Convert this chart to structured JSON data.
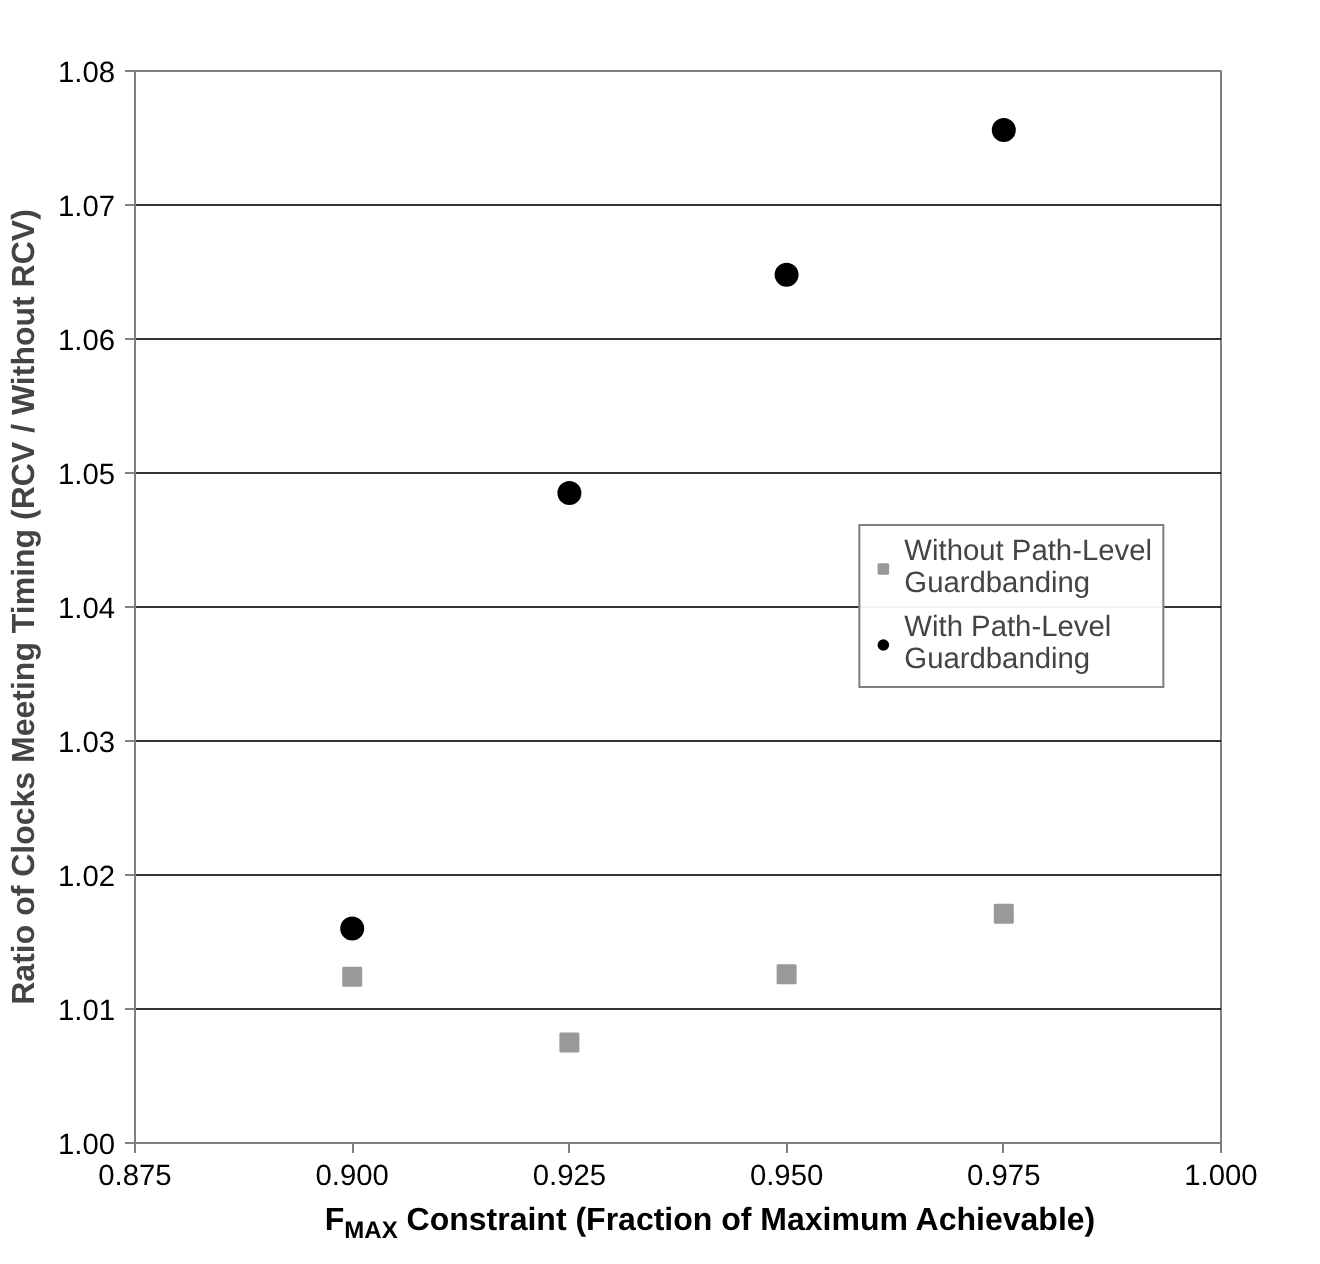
{
  "chart_data": {
    "type": "scatter",
    "xlabel": "F$_{MAX}$ Constraint (Fraction of Maximum Achievable)",
    "ylabel": "Ratio of Clocks Meeting Timing (RCV / Without RCV)",
    "x": [
      0.9,
      0.925,
      0.95,
      0.975
    ],
    "series": [
      {
        "name": "Without Path-Level Guardbanding",
        "color": "#999999",
        "marker": "square",
        "values": [
          1.0124,
          1.0075,
          1.0126,
          1.0171
        ]
      },
      {
        "name": "With Path-Level Guardbanding",
        "color": "#000000",
        "marker": "circle",
        "values": [
          1.016,
          1.0485,
          1.0648,
          1.0756
        ]
      }
    ],
    "xlim": [
      0.875,
      1.0
    ],
    "xticks": [
      {
        "value": 0.875,
        "label": "0.875"
      },
      {
        "value": 0.9,
        "label": "0.900"
      },
      {
        "value": 0.925,
        "label": "0.925"
      },
      {
        "value": 0.95,
        "label": "0.950"
      },
      {
        "value": 0.975,
        "label": "0.975"
      },
      {
        "value": 1.0,
        "label": "1.000"
      }
    ],
    "ylim": [
      1.0,
      1.08
    ],
    "yticks": [
      {
        "value": 1.0,
        "label": "1.00"
      },
      {
        "value": 1.01,
        "label": "1.01"
      },
      {
        "value": 1.02,
        "label": "1.02"
      },
      {
        "value": 1.03,
        "label": "1.03"
      },
      {
        "value": 1.04,
        "label": "1.04"
      },
      {
        "value": 1.05,
        "label": "1.05"
      },
      {
        "value": 1.06,
        "label": "1.06"
      },
      {
        "value": 1.07,
        "label": "1.07"
      },
      {
        "value": 1.08,
        "label": "1.08"
      }
    ],
    "grid": "y",
    "legend": "right"
  }
}
